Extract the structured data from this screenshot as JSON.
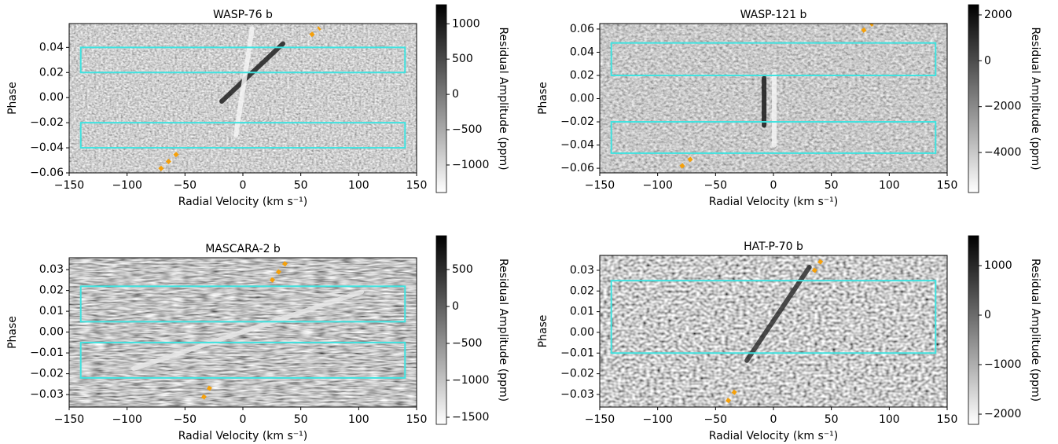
{
  "chart_data": [
    {
      "type": "heatmap",
      "title": "WASP-76 b",
      "xlabel": "Radial Velocity (km s⁻¹)",
      "ylabel": "Phase",
      "colorbar_label": "Residual Amplitude (ppm)",
      "xlim": [
        -150,
        150
      ],
      "ylim": [
        -0.06,
        0.059
      ],
      "xticks": [
        {
          "value": -150,
          "label": "−150"
        },
        {
          "value": -100,
          "label": "−100"
        },
        {
          "value": -50,
          "label": "−50"
        },
        0,
        50,
        100,
        150
      ],
      "yticks": [
        {
          "value": -0.06,
          "label": "−0.06"
        },
        {
          "value": -0.04,
          "label": "−0.04"
        },
        {
          "value": -0.02,
          "label": "−0.02"
        },
        {
          "value": 0,
          "label": "0.00"
        },
        0.02,
        0.04
      ],
      "clim": [
        -1390,
        1270
      ],
      "cticks": [
        {
          "value": -1000,
          "label": "−1000"
        },
        {
          "value": -500,
          "label": "−500"
        },
        0,
        500,
        1000
      ],
      "box_color": "#3fe3e0",
      "boxes": [
        {
          "x": [
            -140,
            140
          ],
          "y": [
            0.02,
            0.04
          ]
        },
        {
          "x": [
            -140,
            140
          ],
          "y": [
            -0.04,
            -0.02
          ]
        }
      ],
      "path_color": "#f5a00a",
      "paths": [
        {
          "x": [
            -71.9,
            -53.6
          ],
          "y": [
            -0.0575,
            -0.0419
          ]
        },
        {
          "x": [
            58.4,
            66.5
          ],
          "y": [
            0.0494,
            0.0556
          ]
        }
      ],
      "signals": [
        {
          "color": "#202020",
          "x": [
            -18.3,
            34.6
          ],
          "y": [
            -0.003,
            0.043
          ]
        },
        {
          "color": "#f4f4f4",
          "x": [
            -6,
            8
          ],
          "y": [
            -0.03,
            0.055
          ]
        }
      ]
    },
    {
      "type": "heatmap",
      "title": "WASP-121 b",
      "xlabel": "Radial Velocity (km s⁻¹)",
      "ylabel": "Phase",
      "colorbar_label": "Residual Amplitude (ppm)",
      "xlim": [
        -150,
        150
      ],
      "ylim": [
        -0.064,
        0.0647
      ],
      "xticks": [
        {
          "value": -150,
          "label": "−150"
        },
        {
          "value": -100,
          "label": "−100"
        },
        {
          "value": -50,
          "label": "−50"
        },
        0,
        50,
        100,
        150
      ],
      "yticks": [
        {
          "value": -0.06,
          "label": "−0.06"
        },
        {
          "value": -0.04,
          "label": "−0.04"
        },
        {
          "value": -0.02,
          "label": "−0.02"
        },
        {
          "value": 0,
          "label": "0.00"
        },
        0.02,
        0.04,
        0.06
      ],
      "clim": [
        -5744,
        2444
      ],
      "cticks": [
        {
          "value": -4000,
          "label": "−4000"
        },
        {
          "value": -2000,
          "label": "−2000"
        },
        0,
        2000
      ],
      "box_color": "#3fe3e0",
      "boxes": [
        {
          "x": [
            -140,
            140
          ],
          "y": [
            0.02,
            0.048
          ]
        },
        {
          "x": [
            -140,
            140
          ],
          "y": [
            -0.047,
            -0.02
          ]
        }
      ],
      "path_color": "#f5a00a",
      "paths": [
        {
          "x": [
            -80.1,
            -69.9
          ],
          "y": [
            -0.059,
            -0.0508
          ]
        },
        {
          "x": [
            76.7,
            85.5
          ],
          "y": [
            0.058,
            0.0647
          ]
        }
      ],
      "signals": [
        {
          "color": "#181818",
          "x": [
            -8.1,
            -8.1
          ],
          "y": [
            -0.023,
            0.0176
          ]
        },
        {
          "color": "#f4f4f4",
          "x": [
            0.7,
            0.7
          ],
          "y": [
            -0.04,
            0.021
          ]
        }
      ]
    },
    {
      "type": "heatmap",
      "title": "MASCARA-2 b",
      "xlabel": "Radial Velocity (km s⁻¹)",
      "ylabel": "Phase",
      "colorbar_label": "Residual Amplitude (ppm)",
      "xlim": [
        -150,
        150
      ],
      "ylim": [
        -0.036,
        0.0357
      ],
      "xticks": [
        {
          "value": -150,
          "label": "−150"
        },
        {
          "value": -100,
          "label": "−100"
        },
        {
          "value": -50,
          "label": "−50"
        },
        0,
        50,
        100,
        150
      ],
      "yticks": [
        {
          "value": -0.03,
          "label": "−0.03"
        },
        {
          "value": -0.02,
          "label": "−0.02"
        },
        {
          "value": -0.01,
          "label": "−0.01"
        },
        {
          "value": 0,
          "label": "0.00"
        },
        0.01,
        0.02,
        0.03
      ],
      "clim": [
        -1596,
        957
      ],
      "cticks": [
        {
          "value": -1500,
          "label": "−1500"
        },
        {
          "value": -1000,
          "label": "−1000"
        },
        {
          "value": -500,
          "label": "−500"
        },
        0,
        500
      ],
      "box_color": "#3fe3e0",
      "boxes": [
        {
          "x": [
            -140,
            140
          ],
          "y": [
            0.005,
            0.022
          ]
        },
        {
          "x": [
            -140,
            140
          ],
          "y": [
            -0.022,
            -0.005
          ]
        }
      ],
      "path_color": "#f5a00a",
      "paths": [
        {
          "x": [
            -34.6,
            -26.5
          ],
          "y": [
            -0.0319,
            -0.0249
          ]
        },
        {
          "x": [
            24.4,
            38
          ],
          "y": [
            0.0243,
            0.034
          ]
        }
      ],
      "signals": [
        {
          "color": "#e8e8e8",
          "x": [
            -94.3,
            102.5
          ],
          "y": [
            -0.0175,
            0.0193
          ]
        }
      ]
    },
    {
      "type": "heatmap",
      "title": "HAT-P-70 b",
      "xlabel": "Radial Velocity (km s⁻¹)",
      "ylabel": "Phase",
      "colorbar_label": "Residual Amplitude (ppm)",
      "xlim": [
        -150,
        150
      ],
      "ylim": [
        -0.0361,
        0.0372
      ],
      "xticks": [
        {
          "value": -150,
          "label": "−150"
        },
        {
          "value": -100,
          "label": "−100"
        },
        {
          "value": -50,
          "label": "−50"
        },
        0,
        50,
        100,
        150
      ],
      "yticks": [
        {
          "value": -0.03,
          "label": "−0.03"
        },
        {
          "value": -0.02,
          "label": "−0.02"
        },
        {
          "value": -0.01,
          "label": "−0.01"
        },
        {
          "value": 0,
          "label": "0.00"
        },
        0.01,
        0.02,
        0.03
      ],
      "clim": [
        -2206,
        1603
      ],
      "cticks": [
        {
          "value": -2000,
          "label": "−2000"
        },
        {
          "value": -1000,
          "label": "−1000"
        },
        0,
        1000
      ],
      "box_color": "#3fe3e0",
      "boxes": [
        {
          "x": [
            -140,
            140
          ],
          "y": [
            -0.01,
            0.025
          ]
        }
      ],
      "path_color": "#f5a00a",
      "paths": [
        {
          "x": [
            -40,
            -32.6
          ],
          "y": [
            -0.0337,
            -0.028
          ]
        },
        {
          "x": [
            34.6,
            42.8
          ],
          "y": [
            0.0292,
            0.036
          ]
        }
      ],
      "signals": [
        {
          "color": "#303030",
          "x": [
            -23,
            31
          ],
          "y": [
            -0.0136,
            0.0315
          ]
        }
      ]
    }
  ]
}
